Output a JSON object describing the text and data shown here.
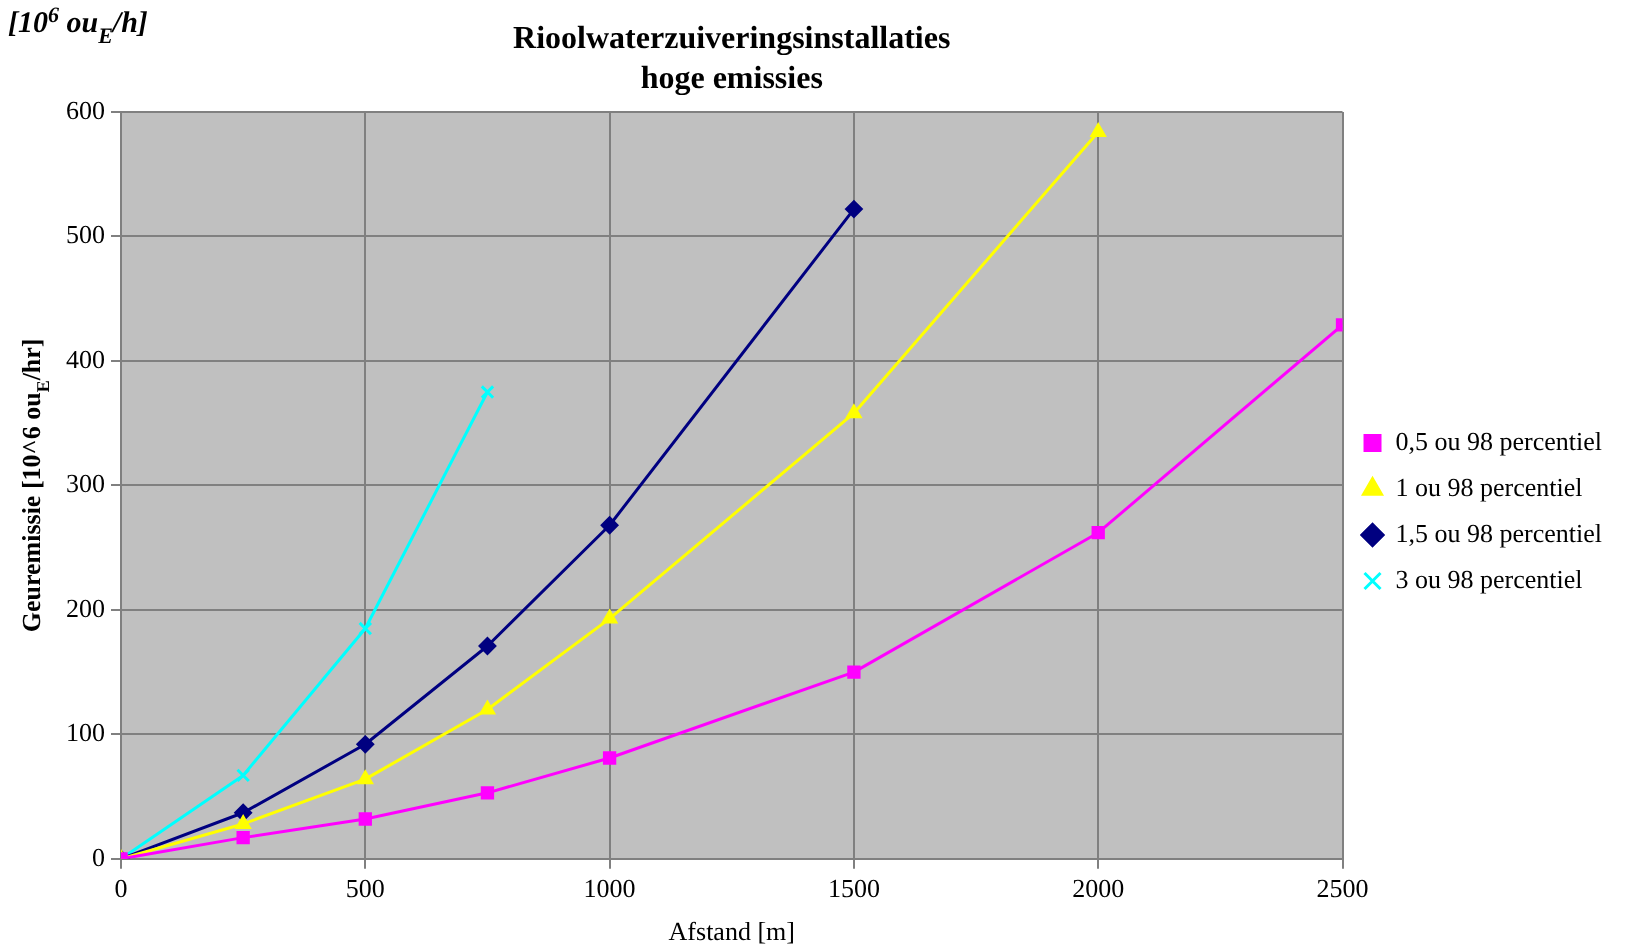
{
  "chart_data": {
    "type": "line",
    "title": "Rioolwaterzuiveringsinstallaties",
    "subtitle": "hoge emissies",
    "xlabel": "Afstand [m]",
    "ylabel": "Geuremissie [10^6 ou$_{E}$/hr]",
    "annotations": [
      "[10$^{6}$ ou$_{E}$/h]"
    ],
    "x": [
      0,
      250,
      500,
      750,
      1000,
      1500,
      2000,
      2500
    ],
    "series": [
      {
        "name": "0,5 ou 98 percentiel",
        "color": "#ff00ff",
        "marker": "square",
        "values": [
          0,
          17,
          32,
          53,
          81,
          150,
          262,
          429
        ]
      },
      {
        "name": "1 ou 98 percentiel",
        "color": "#ffff00",
        "marker": "triangle",
        "values": [
          0,
          28,
          64,
          120,
          193,
          358,
          584,
          null
        ]
      },
      {
        "name": "1,5 ou 98 percentiel",
        "color": "#000080",
        "marker": "diamond",
        "values": [
          0,
          37,
          92,
          171,
          268,
          522,
          null,
          null
        ]
      },
      {
        "name": "3 ou 98 percentiel",
        "color": "#00ffff",
        "marker": "cross",
        "values": [
          0,
          67,
          185,
          375,
          null,
          null,
          null,
          null
        ]
      }
    ],
    "xlim": [
      0,
      2500
    ],
    "xticks": [
      0,
      500,
      1000,
      1500,
      2000,
      2500
    ],
    "ylim": [
      0,
      600
    ],
    "yticks": [
      0,
      100,
      200,
      300,
      400,
      500,
      600
    ],
    "grid": true,
    "legend": "right",
    "line_style": "solid"
  }
}
